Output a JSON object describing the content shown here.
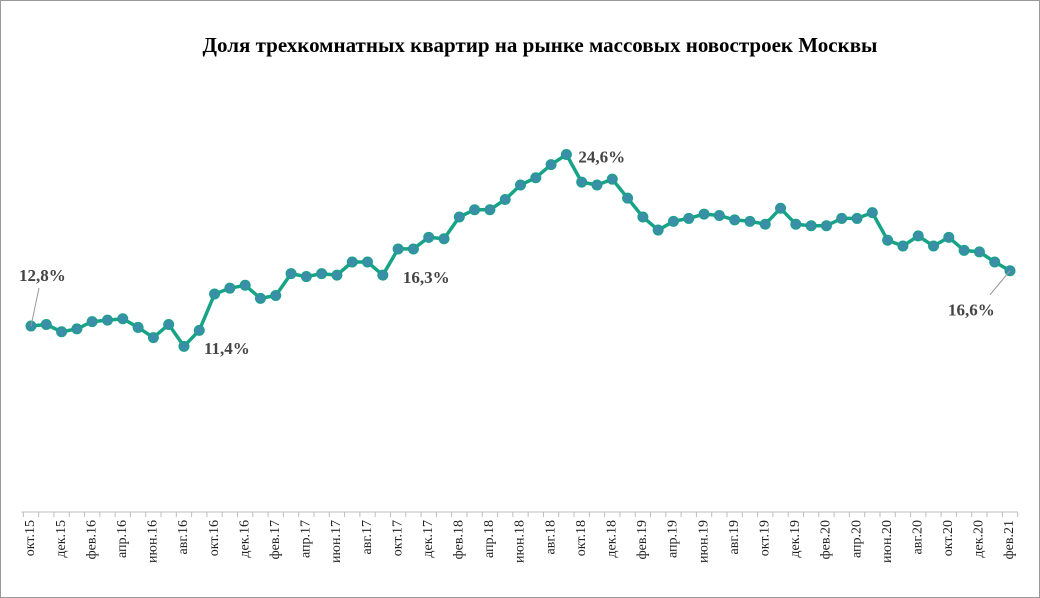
{
  "chart_data": {
    "type": "line",
    "title": "Доля трехкомнатных квартир на рынке массовых новостроек Москвы",
    "categories": [
      "окт.15",
      null,
      "дек.15",
      null,
      "фев.16",
      null,
      "апр.16",
      null,
      "июн.16",
      null,
      "авг.16",
      null,
      "окт.16",
      null,
      "дек.16",
      null,
      "фев.17",
      null,
      "апр.17",
      null,
      "июн.17",
      null,
      "авг.17",
      null,
      "окт.17",
      null,
      "дек.17",
      null,
      "фев.18",
      null,
      "апр.18",
      null,
      "июн.18",
      null,
      "авг.18",
      null,
      "окт.18",
      null,
      "дек.18",
      null,
      "фев.19",
      null,
      "апр.19",
      null,
      "июн.19",
      null,
      "авг.19",
      null,
      "окт.19",
      null,
      "дек.19",
      null,
      "фев.20",
      null,
      "апр.20",
      null,
      "июн.20",
      null,
      "авг.20",
      null,
      "окт.20",
      null,
      "дек.20",
      null,
      "фев.21"
    ],
    "values": [
      12.8,
      12.9,
      12.4,
      12.6,
      13.1,
      13.2,
      13.3,
      12.7,
      12.0,
      12.9,
      11.4,
      12.5,
      15.0,
      15.4,
      15.6,
      14.7,
      14.9,
      16.4,
      16.2,
      16.4,
      16.3,
      17.2,
      17.2,
      16.3,
      18.1,
      18.1,
      18.9,
      18.8,
      20.3,
      20.8,
      20.8,
      21.5,
      22.5,
      23.0,
      23.9,
      24.6,
      22.7,
      22.5,
      22.9,
      21.6,
      20.3,
      19.4,
      20.0,
      20.2,
      20.5,
      20.4,
      20.1,
      20.0,
      19.8,
      20.9,
      19.8,
      19.7,
      19.7,
      20.2,
      20.2,
      20.6,
      18.7,
      18.3,
      19.0,
      18.3,
      18.9,
      18.0,
      17.9,
      17.2,
      16.6
    ],
    "value_labels": [
      "12,8%",
      null,
      null,
      null,
      null,
      null,
      null,
      null,
      null,
      null,
      "11,4%",
      null,
      null,
      null,
      null,
      null,
      null,
      null,
      null,
      null,
      null,
      null,
      null,
      "16,3%",
      null,
      null,
      null,
      null,
      null,
      null,
      null,
      null,
      null,
      null,
      null,
      "24,6%",
      null,
      null,
      null,
      null,
      null,
      null,
      null,
      null,
      null,
      null,
      null,
      null,
      null,
      null,
      null,
      null,
      null,
      null,
      null,
      null,
      null,
      null,
      null,
      null,
      null,
      null,
      null,
      null,
      "16,6%"
    ],
    "color": "#17a386",
    "marker_color": "#3b8ea8",
    "ylim": [
      0,
      30
    ]
  }
}
